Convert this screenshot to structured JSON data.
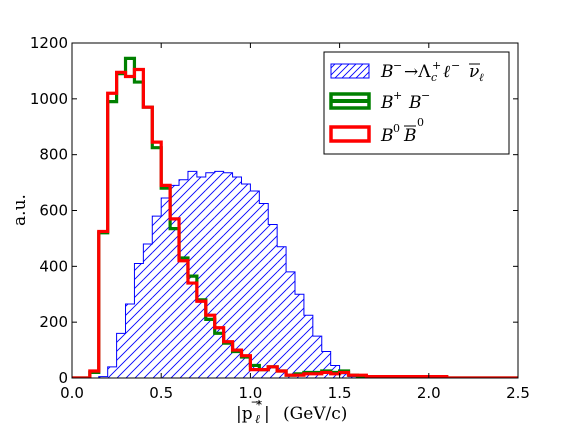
{
  "chart_data": {
    "type": "histogram",
    "xlabel": "|p⃗*ℓ|   (GeV/c)",
    "ylabel": "a.u.",
    "xlim": [
      0.0,
      2.5
    ],
    "ylim": [
      0,
      1200
    ],
    "xticks": [
      0.0,
      0.5,
      1.0,
      1.5,
      2.0,
      2.5
    ],
    "xtick_labels": [
      "0.0",
      "0.5",
      "1.0",
      "1.5",
      "2.0",
      "2.5"
    ],
    "yticks": [
      0,
      200,
      400,
      600,
      800,
      1000,
      1200
    ],
    "ytick_labels": [
      "0",
      "200",
      "400",
      "600",
      "800",
      "1000",
      "1200"
    ],
    "grid": false,
    "legend_position": "top-right",
    "bin_edges": [
      0.0,
      0.05,
      0.1,
      0.15,
      0.2,
      0.25,
      0.3,
      0.35,
      0.4,
      0.45,
      0.5,
      0.55,
      0.6,
      0.65,
      0.7,
      0.75,
      0.8,
      0.85,
      0.9,
      0.95,
      1.0,
      1.05,
      1.1,
      1.15,
      1.2,
      1.25,
      1.3,
      1.35,
      1.4,
      1.45,
      1.5,
      1.55,
      1.6,
      1.65,
      1.7,
      1.75,
      1.8,
      1.85,
      1.9,
      1.95,
      2.0,
      2.05,
      2.1,
      2.15,
      2.2,
      2.25,
      2.3,
      2.35,
      2.4,
      2.45,
      2.5
    ],
    "series": [
      {
        "name": "B⁻ →Λ₊ᶜ ℓ⁻ ν̄ℓ",
        "legend_main": "B⁻ →Λᶜ⁺ ℓ⁻",
        "legend_bar": "νℓ",
        "style": "hatched",
        "color": "#0000ff",
        "values": [
          0,
          0,
          0,
          5,
          40,
          160,
          265,
          410,
          480,
          580,
          645,
          690,
          710,
          740,
          720,
          735,
          740,
          735,
          720,
          695,
          670,
          625,
          550,
          470,
          380,
          300,
          225,
          150,
          95,
          45,
          15,
          5,
          2,
          0,
          0,
          0,
          0,
          0,
          0,
          0,
          0,
          0,
          0,
          0,
          0,
          0,
          0,
          0,
          0,
          0
        ]
      },
      {
        "name": "B⁺ B⁻",
        "legend_main": "B⁺ B⁻",
        "style": "step",
        "color": "#008000",
        "values": [
          0,
          0,
          20,
          520,
          990,
          1090,
          1145,
          1060,
          970,
          825,
          680,
          535,
          430,
          365,
          280,
          210,
          160,
          125,
          95,
          75,
          45,
          30,
          40,
          25,
          10,
          15,
          20,
          20,
          25,
          20,
          25,
          10,
          5,
          5,
          5,
          5,
          5,
          5,
          5,
          5,
          5,
          5,
          0,
          0,
          0,
          0,
          0,
          0,
          0,
          0
        ]
      },
      {
        "name": "B⁰ B̄⁰",
        "legend_main": "B⁰ B",
        "legend_bar": "B",
        "legend_sup": "0",
        "style": "step",
        "color": "#ff0000",
        "values": [
          0,
          0,
          25,
          525,
          1020,
          1095,
          1080,
          1105,
          970,
          845,
          690,
          570,
          420,
          340,
          275,
          225,
          180,
          130,
          100,
          80,
          30,
          30,
          40,
          25,
          10,
          10,
          15,
          15,
          20,
          15,
          20,
          10,
          10,
          5,
          5,
          5,
          5,
          5,
          5,
          5,
          5,
          5,
          0,
          0,
          0,
          0,
          0,
          0,
          0,
          0
        ]
      }
    ]
  }
}
